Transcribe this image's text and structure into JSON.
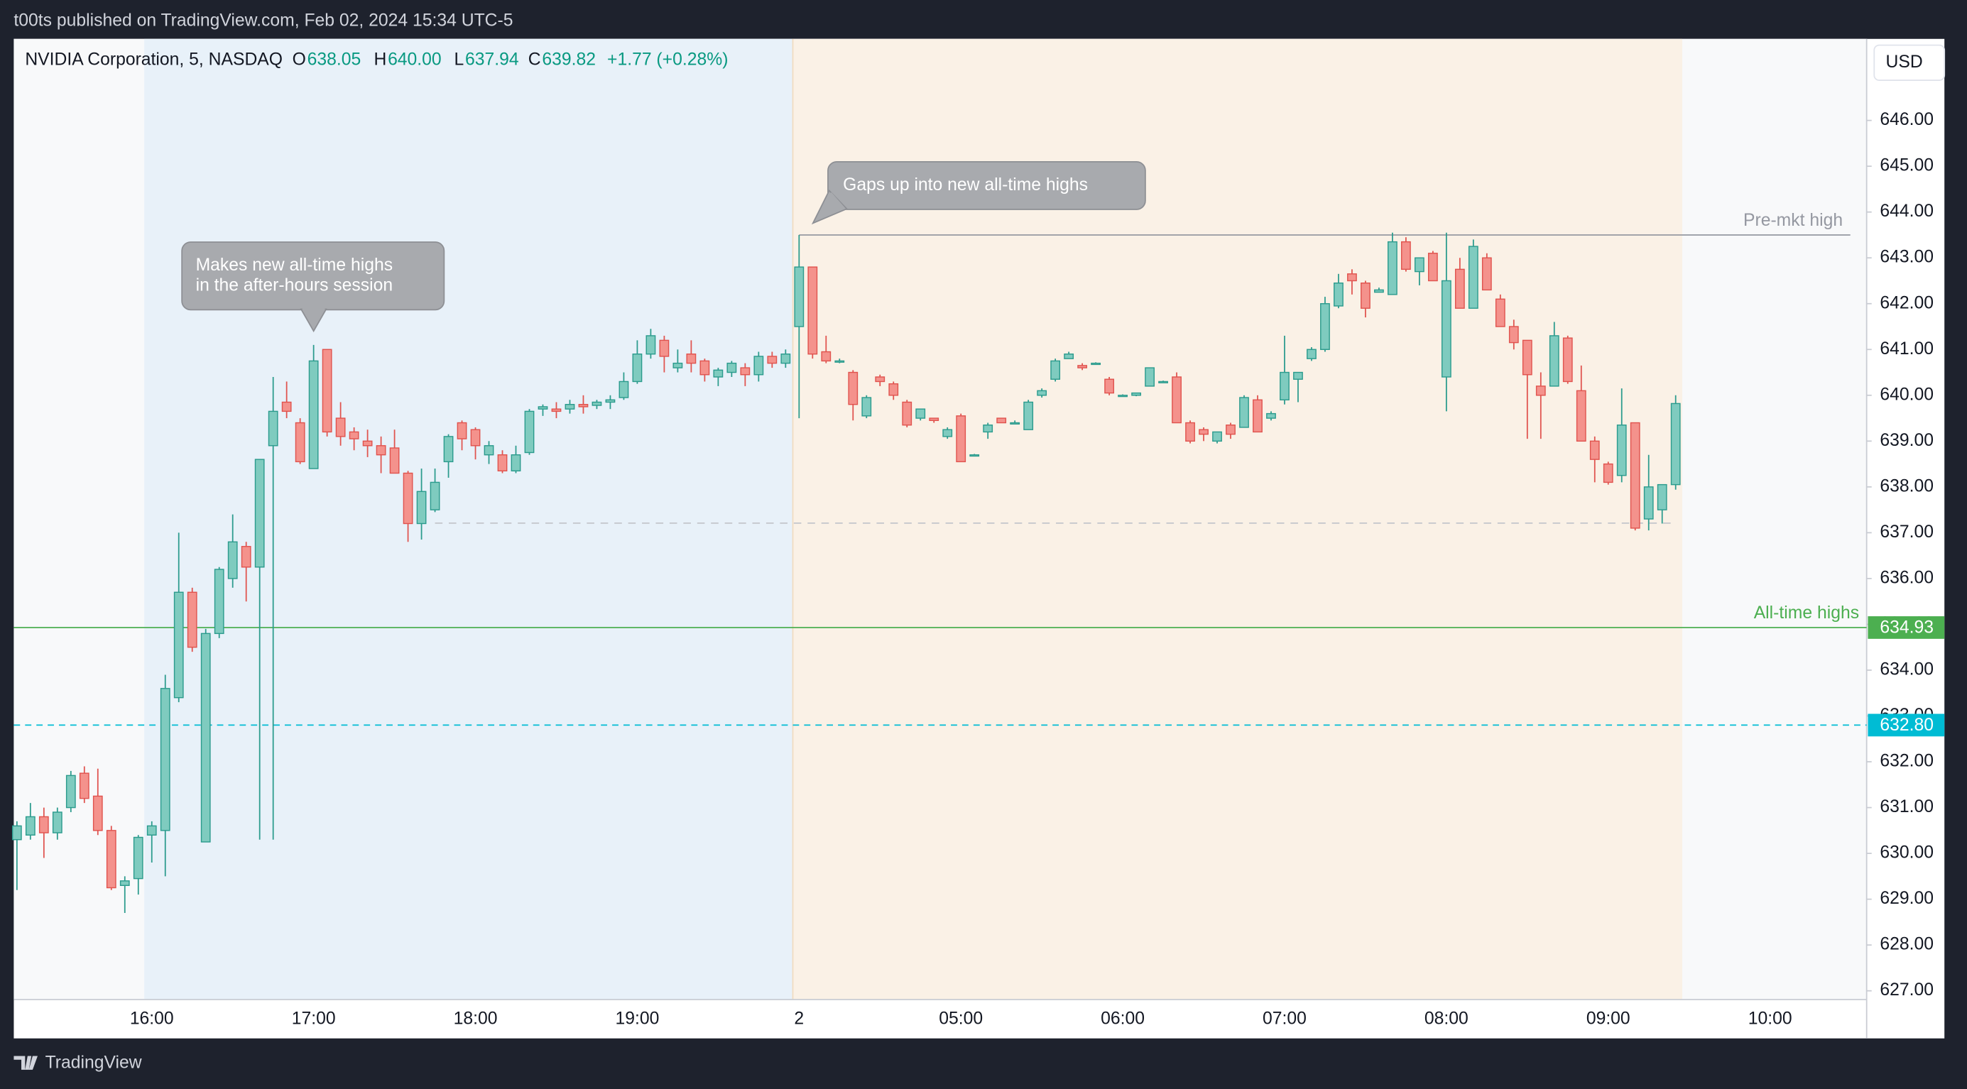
{
  "header": "t00ts published on TradingView.com, Feb 02, 2024 15:34 UTC-5",
  "brand": "TradingView",
  "chart_data": {
    "type": "candlestick",
    "title": "NVIDIA Corporation, 5, NASDAQ",
    "ohlc_legend": [
      {
        "key": "O",
        "text": "638.05"
      },
      {
        "key": "H",
        "text": "640.00"
      },
      {
        "key": "L",
        "text": "637.94"
      },
      {
        "key": "C",
        "text": "639.82"
      }
    ],
    "change": "+1.77 (+0.28%)",
    "currency": "USD",
    "up_color": "#7fcbbf",
    "up_border": "#2b9b8d",
    "down_color": "#f4928c",
    "down_border": "#e0534e",
    "categories": [
      null,
      null,
      null,
      null,
      null,
      null,
      null,
      null,
      null,
      null,
      "16:00",
      null,
      null,
      null,
      null,
      null,
      null,
      null,
      null,
      null,
      null,
      null,
      "17:00",
      null,
      null,
      null,
      null,
      null,
      null,
      null,
      null,
      null,
      null,
      null,
      "18:00",
      null,
      null,
      null,
      null,
      null,
      null,
      null,
      null,
      null,
      null,
      null,
      "19:00",
      null,
      null,
      null,
      null,
      null,
      null,
      null,
      null,
      null,
      null,
      null,
      "2",
      null,
      null,
      null,
      null,
      null,
      null,
      null,
      null,
      null,
      null,
      null,
      "05:00",
      null,
      null,
      null,
      null,
      null,
      null,
      null,
      null,
      null,
      null,
      null,
      "06:00",
      null,
      null,
      null,
      null,
      null,
      null,
      null,
      null,
      null,
      null,
      null,
      "07:00",
      null,
      null,
      null,
      null,
      null,
      null,
      null,
      null,
      null,
      null,
      null,
      "08:00",
      null,
      null,
      null,
      null,
      null,
      null,
      null,
      null,
      null,
      null,
      null,
      "09:00",
      null,
      null,
      null,
      null,
      null,
      null,
      null,
      null,
      null,
      null,
      null,
      "10:00"
    ],
    "candles": [
      [
        630.3,
        630.7,
        629.2,
        630.6
      ],
      [
        630.4,
        631.1,
        630.3,
        630.8
      ],
      [
        630.8,
        631.0,
        629.9,
        630.45
      ],
      [
        630.45,
        631.0,
        630.3,
        630.9
      ],
      [
        631.0,
        631.8,
        630.9,
        631.7
      ],
      [
        631.75,
        631.9,
        631.1,
        631.2
      ],
      [
        631.25,
        631.85,
        630.4,
        630.5
      ],
      [
        630.5,
        630.6,
        629.2,
        629.25
      ],
      [
        629.3,
        629.5,
        628.7,
        629.4
      ],
      [
        629.45,
        630.4,
        629.1,
        630.35
      ],
      [
        630.4,
        630.7,
        629.8,
        630.6
      ],
      [
        630.5,
        633.9,
        629.5,
        633.6
      ],
      [
        633.4,
        637.0,
        633.3,
        635.7
      ],
      [
        635.7,
        635.8,
        634.4,
        634.5
      ],
      [
        630.25,
        634.9,
        630.25,
        634.8
      ],
      [
        634.8,
        636.25,
        634.7,
        636.2
      ],
      [
        636.0,
        637.4,
        635.8,
        636.8
      ],
      [
        636.7,
        636.8,
        635.5,
        636.25
      ],
      [
        636.25,
        638.6,
        630.3,
        638.6
      ],
      [
        638.9,
        640.4,
        630.3,
        639.65
      ],
      [
        639.85,
        640.3,
        639.5,
        639.65
      ],
      [
        639.4,
        639.5,
        638.5,
        638.55
      ],
      [
        638.4,
        641.1,
        638.4,
        640.75
      ],
      [
        641.0,
        641.0,
        639.1,
        639.2
      ],
      [
        639.5,
        639.85,
        638.9,
        639.1
      ],
      [
        639.2,
        639.3,
        638.8,
        639.05
      ],
      [
        639.0,
        639.25,
        638.65,
        638.9
      ],
      [
        638.9,
        639.1,
        638.3,
        638.7
      ],
      [
        638.85,
        639.25,
        638.3,
        638.3
      ],
      [
        638.3,
        638.35,
        636.8,
        637.2
      ],
      [
        637.2,
        638.4,
        636.85,
        637.9
      ],
      [
        637.5,
        638.4,
        637.45,
        638.1
      ],
      [
        638.55,
        639.15,
        638.2,
        639.1
      ],
      [
        639.4,
        639.45,
        638.8,
        639.05
      ],
      [
        639.25,
        639.3,
        638.6,
        638.9
      ],
      [
        638.7,
        639.0,
        638.5,
        638.9
      ],
      [
        638.7,
        638.8,
        638.3,
        638.35
      ],
      [
        638.35,
        638.9,
        638.3,
        638.7
      ],
      [
        638.75,
        639.7,
        638.7,
        639.65
      ],
      [
        639.7,
        639.8,
        639.55,
        639.75
      ],
      [
        639.7,
        639.85,
        639.5,
        639.65
      ],
      [
        639.7,
        639.9,
        639.6,
        639.8
      ],
      [
        639.8,
        640.0,
        639.6,
        639.75
      ],
      [
        639.78,
        639.9,
        639.7,
        639.85
      ],
      [
        639.85,
        640.0,
        639.7,
        639.9
      ],
      [
        639.95,
        640.5,
        639.9,
        640.3
      ],
      [
        640.3,
        641.2,
        640.25,
        640.9
      ],
      [
        640.9,
        641.45,
        640.8,
        641.3
      ],
      [
        641.2,
        641.3,
        640.5,
        640.85
      ],
      [
        640.6,
        641.0,
        640.5,
        640.7
      ],
      [
        640.9,
        641.2,
        640.5,
        640.7
      ],
      [
        640.75,
        640.8,
        640.3,
        640.45
      ],
      [
        640.4,
        640.6,
        640.2,
        640.55
      ],
      [
        640.5,
        640.75,
        640.4,
        640.7
      ],
      [
        640.6,
        640.7,
        640.2,
        640.45
      ],
      [
        640.45,
        640.95,
        640.3,
        640.85
      ],
      [
        640.85,
        640.95,
        640.6,
        640.7
      ],
      [
        640.7,
        641.0,
        640.6,
        640.9
      ],
      [
        641.5,
        643.5,
        639.5,
        642.8
      ],
      [
        642.8,
        642.8,
        640.8,
        640.9
      ],
      [
        640.95,
        641.3,
        640.7,
        640.75
      ],
      [
        640.75,
        640.8,
        640.7,
        640.75
      ],
      [
        640.5,
        640.55,
        639.45,
        639.8
      ],
      [
        639.55,
        640.0,
        639.5,
        639.95
      ],
      [
        640.4,
        640.45,
        640.2,
        640.3
      ],
      [
        640.25,
        640.3,
        639.9,
        640.0
      ],
      [
        639.85,
        639.9,
        639.3,
        639.35
      ],
      [
        639.5,
        639.7,
        639.45,
        639.7
      ],
      [
        639.5,
        639.5,
        639.4,
        639.45
      ],
      [
        639.1,
        639.3,
        639.05,
        639.25
      ],
      [
        639.55,
        639.6,
        638.55,
        638.55
      ],
      [
        638.7,
        638.72,
        638.68,
        638.7
      ],
      [
        639.2,
        639.4,
        639.05,
        639.35
      ],
      [
        639.5,
        639.5,
        639.4,
        639.4
      ],
      [
        639.4,
        639.45,
        639.38,
        639.4
      ],
      [
        639.25,
        639.9,
        639.25,
        639.85
      ],
      [
        640.0,
        640.15,
        639.95,
        640.1
      ],
      [
        640.35,
        640.8,
        640.3,
        640.75
      ],
      [
        640.8,
        640.95,
        640.8,
        640.9
      ],
      [
        640.65,
        640.7,
        640.55,
        640.6
      ],
      [
        640.7,
        640.72,
        640.68,
        640.7
      ],
      [
        640.35,
        640.4,
        640.0,
        640.05
      ],
      [
        640.0,
        640.02,
        639.98,
        640.0
      ],
      [
        640.0,
        640.05,
        639.98,
        640.05
      ],
      [
        640.2,
        640.6,
        640.2,
        640.6
      ],
      [
        640.3,
        640.32,
        640.28,
        640.3
      ],
      [
        640.4,
        640.5,
        639.4,
        639.4
      ],
      [
        639.4,
        639.45,
        638.95,
        639.0
      ],
      [
        639.25,
        639.3,
        639.0,
        639.15
      ],
      [
        639.0,
        639.2,
        638.95,
        639.2
      ],
      [
        639.35,
        639.4,
        639.05,
        639.15
      ],
      [
        639.3,
        640.0,
        639.3,
        639.95
      ],
      [
        639.9,
        640.0,
        639.2,
        639.2
      ],
      [
        639.5,
        639.65,
        639.45,
        639.6
      ],
      [
        639.9,
        641.3,
        639.8,
        640.5
      ],
      [
        640.35,
        640.5,
        639.85,
        640.5
      ],
      [
        640.8,
        641.05,
        640.75,
        641.0
      ],
      [
        641.0,
        642.15,
        640.95,
        642.0
      ],
      [
        641.95,
        642.65,
        641.9,
        642.45
      ],
      [
        642.65,
        642.75,
        642.2,
        642.5
      ],
      [
        642.45,
        642.5,
        641.7,
        641.9
      ],
      [
        642.25,
        642.35,
        642.25,
        642.3
      ],
      [
        642.2,
        643.55,
        642.2,
        643.35
      ],
      [
        643.35,
        643.45,
        642.7,
        642.75
      ],
      [
        642.7,
        643.0,
        642.4,
        643.0
      ],
      [
        643.1,
        643.15,
        642.5,
        642.5
      ],
      [
        640.4,
        643.55,
        639.65,
        642.5
      ],
      [
        642.75,
        643.0,
        641.9,
        641.9
      ],
      [
        641.9,
        643.4,
        641.9,
        643.25
      ],
      [
        643.0,
        643.1,
        642.3,
        642.3
      ],
      [
        642.1,
        642.2,
        641.5,
        641.5
      ],
      [
        641.5,
        641.65,
        641.0,
        641.15
      ],
      [
        641.2,
        641.2,
        639.05,
        640.45
      ],
      [
        640.2,
        640.5,
        639.05,
        640.0
      ],
      [
        640.2,
        641.6,
        640.2,
        641.3
      ],
      [
        641.25,
        641.3,
        640.25,
        640.3
      ],
      [
        640.1,
        640.65,
        639.0,
        639.0
      ],
      [
        639.0,
        639.1,
        638.1,
        638.6
      ],
      [
        638.5,
        638.55,
        638.05,
        638.1
      ],
      [
        638.25,
        640.15,
        638.1,
        639.35
      ],
      [
        639.4,
        639.4,
        637.05,
        637.1
      ],
      [
        637.3,
        638.7,
        637.05,
        638.0
      ],
      [
        637.5,
        638.05,
        637.2,
        638.05
      ],
      [
        638.05,
        640.0,
        637.94,
        639.82
      ],
      null,
      null,
      null,
      null,
      null,
      null,
      null
    ],
    "ylim": [
      626.81,
      647.78
    ],
    "yticks": [
      {
        "value": 627,
        "label": "627.00"
      },
      {
        "value": 628,
        "label": "628.00"
      },
      {
        "value": 629,
        "label": "629.00"
      },
      {
        "value": 630,
        "label": "630.00"
      },
      {
        "value": 631,
        "label": "631.00"
      },
      {
        "value": 632,
        "label": "632.00"
      },
      {
        "value": 633,
        "label": "633.00"
      },
      {
        "value": 634,
        "label": "634.00"
      },
      {
        "value": 635,
        "label": "635.00"
      },
      {
        "value": 636,
        "label": "636.00"
      },
      {
        "value": 637,
        "label": "637.00"
      },
      {
        "value": 638,
        "label": "638.00"
      },
      {
        "value": 639,
        "label": "639.00"
      },
      {
        "value": 640,
        "label": "640.00"
      },
      {
        "value": 641,
        "label": "641.00"
      },
      {
        "value": 642,
        "label": "642.00"
      },
      {
        "value": 643,
        "label": "643.00"
      },
      {
        "value": 644,
        "label": "644.00"
      },
      {
        "value": 645,
        "label": "645.00"
      },
      {
        "value": 646,
        "label": "646.00"
      }
    ],
    "levels": [
      {
        "label": "Pre-mkt high",
        "value": 643.5,
        "color": "#9598a1",
        "style": "solid",
        "start": 58
      },
      {
        "label": "All-time highs",
        "value": 634.93,
        "value_label": "634.93",
        "color": "#4caf50",
        "style": "solid"
      },
      {
        "value": 632.8,
        "value_label": "632.80",
        "color": "#00bcd4",
        "style": "dashed"
      },
      {
        "value": 637.21,
        "color": "#c3c5cb",
        "style": "dashed",
        "start": 31,
        "end": 123
      }
    ],
    "annotations": [
      {
        "lines": [
          "Makes new all-time highs",
          "in the after-hours session"
        ]
      },
      {
        "lines": [
          "Gaps up into new all-time highs"
        ]
      }
    ]
  }
}
